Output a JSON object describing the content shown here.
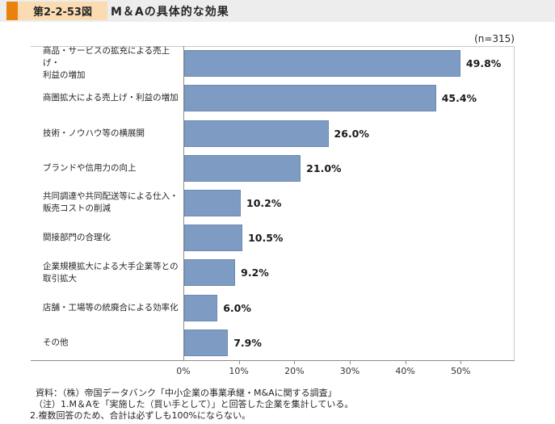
{
  "header": {
    "figure_label": "第2-2-53図",
    "title": "M＆Aの具体的な効果"
  },
  "chart": {
    "sample_size_label": "(n=315)"
  },
  "colors": {
    "accent_orange": "#e8820d",
    "accent_light_orange": "#fbdcb2",
    "header_strip_bg": "#ededed",
    "bar_fill": "#7e9cc3",
    "bar_border": "#6d89ae"
  },
  "chart_data": {
    "type": "bar",
    "orientation": "horizontal",
    "title": "M＆Aの具体的な効果",
    "sample_size": "(n=315)",
    "categories": [
      "商品・サービスの拡充による売上げ・\n利益の増加",
      "商圏拡大による売上げ・利益の増加",
      "技術・ノウハウ等の横展開",
      "ブランドや信用力の向上",
      "共同調達や共同配送等による仕入・\n販売コストの削減",
      "間接部門の合理化",
      "企業規模拡大による大手企業等との\n取引拡大",
      "店舗・工場等の統廃合による効率化",
      "その他"
    ],
    "values": [
      49.8,
      45.4,
      26.0,
      21.0,
      10.2,
      10.5,
      9.2,
      6.0,
      7.9
    ],
    "value_labels": [
      "49.8%",
      "45.4%",
      "26.0%",
      "21.0%",
      "10.2%",
      "10.5%",
      "9.2%",
      "6.0%",
      "7.9%"
    ],
    "x_tick_labels": [
      "0%",
      "10%",
      "20%",
      "30%",
      "40%",
      "50%"
    ],
    "xlabel": "",
    "ylabel": "",
    "xlim": [
      0,
      60
    ],
    "grid": false,
    "legend": false
  },
  "footer": {
    "lines": [
      "資料：（株）帝国データバンク「中小企業の事業承継・M&Aに関する調査」",
      "（注）1.M＆Aを「実施した（買い手として）」と回答した企業を集計している。",
      "2.複数回答のため、合計は必ずしも100%にならない。"
    ]
  }
}
